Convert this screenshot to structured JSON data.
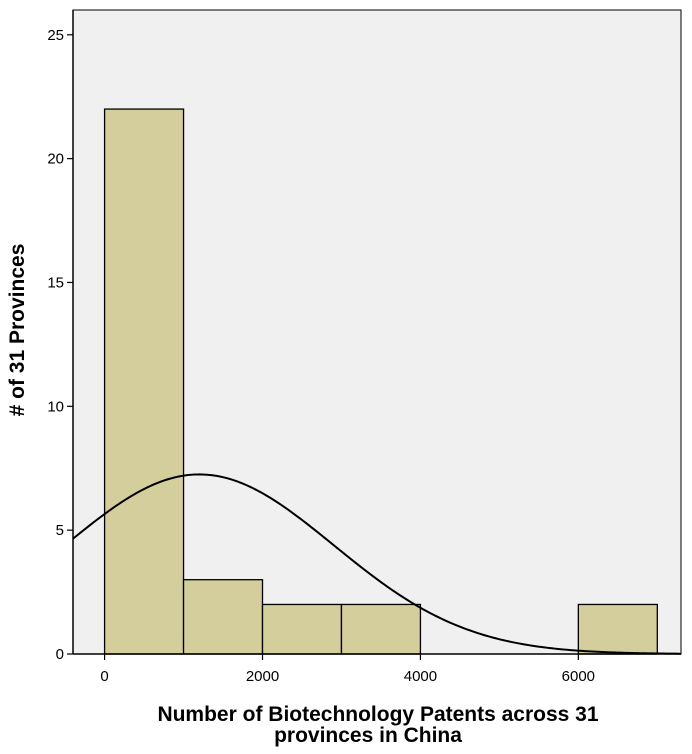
{
  "chart_data": {
    "type": "bar",
    "subtype": "histogram-with-normal-curve",
    "title": "",
    "xlabel_lines": [
      "Number of Biotechnology Patents across 31",
      "provinces in China"
    ],
    "ylabel": "# of 31 Provinces",
    "xlim": [
      -400,
      7300
    ],
    "ylim": [
      0,
      26
    ],
    "x_ticks": [
      0,
      2000,
      4000,
      6000
    ],
    "y_ticks": [
      0,
      5,
      10,
      15,
      20,
      25
    ],
    "bins": [
      {
        "start": 0,
        "end": 1000,
        "count": 22
      },
      {
        "start": 1000,
        "end": 2000,
        "count": 3
      },
      {
        "start": 2000,
        "end": 3000,
        "count": 2
      },
      {
        "start": 3000,
        "end": 4000,
        "count": 2
      },
      {
        "start": 4000,
        "end": 5000,
        "count": 0
      },
      {
        "start": 5000,
        "end": 6000,
        "count": 0
      },
      {
        "start": 6000,
        "end": 7000,
        "count": 2
      }
    ],
    "normal_curve": {
      "mean": 1200,
      "sd": 1700,
      "peak": 7.25
    },
    "grid": false,
    "legend": "none",
    "colors": {
      "plot_background": "#f0f0f0",
      "bar_fill": "#d3ce9c",
      "bar_stroke": "#000000",
      "curve": "#000000",
      "axis": "#000000"
    }
  }
}
